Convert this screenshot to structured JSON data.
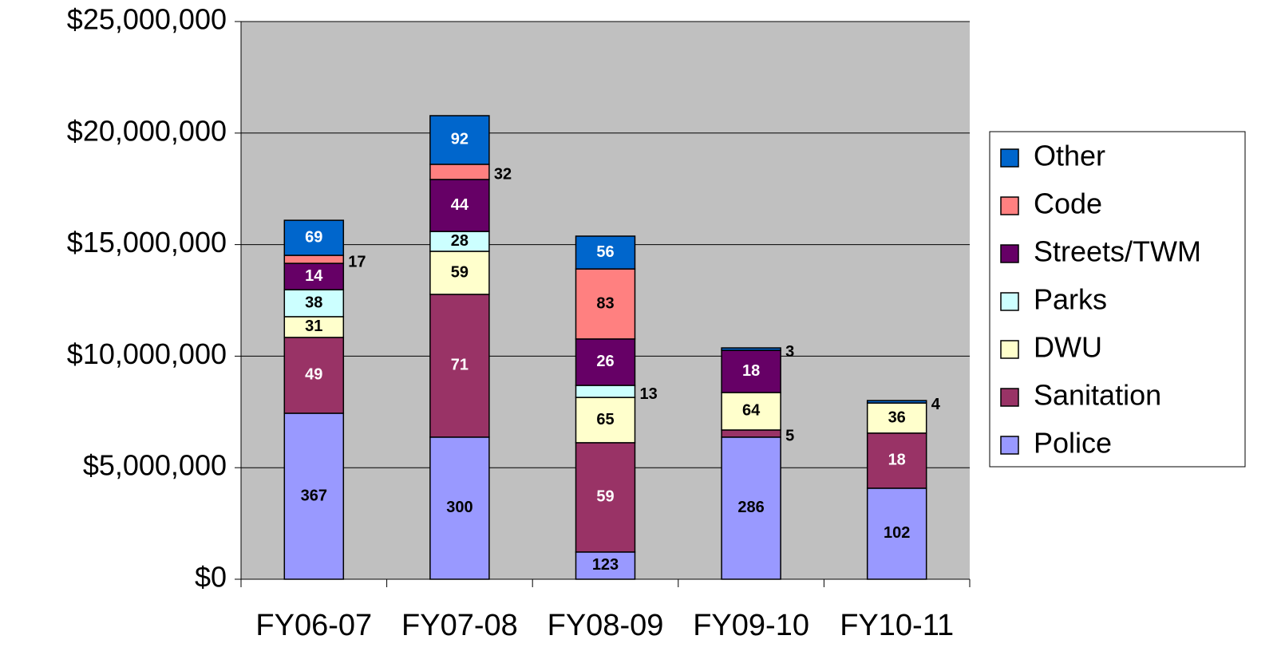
{
  "chart_data": {
    "type": "stacked_bar",
    "categories": [
      "FY06-07",
      "FY07-08",
      "FY08-09",
      "FY09-10",
      "FY10-11"
    ],
    "series": [
      {
        "name": "Police",
        "color": "#9999ff",
        "values": [
          7.44,
          6.37,
          1.22,
          6.37,
          4.08
        ],
        "counts": [
          367,
          300,
          123,
          286,
          102
        ]
      },
      {
        "name": "Sanitation",
        "color": "#993366",
        "values": [
          3.4,
          6.4,
          4.9,
          0.32,
          2.47
        ],
        "counts": [
          49,
          71,
          59,
          5,
          18
        ]
      },
      {
        "name": "DWU",
        "color": "#ffffcc",
        "values": [
          0.93,
          1.93,
          2.03,
          1.68,
          1.35
        ],
        "counts": [
          31,
          59,
          65,
          64,
          36
        ]
      },
      {
        "name": "Parks",
        "color": "#ccffff",
        "values": [
          1.21,
          0.89,
          0.54,
          0,
          0
        ],
        "counts": [
          38,
          28,
          13,
          null,
          null
        ]
      },
      {
        "name": "Streets/TWM",
        "color": "#660066",
        "values": [
          1.18,
          2.33,
          2.08,
          1.89,
          0
        ],
        "counts": [
          14,
          44,
          26,
          18,
          null
        ]
      },
      {
        "name": "Code",
        "color": "#ff8080",
        "values": [
          0.36,
          0.68,
          3.14,
          0,
          0
        ],
        "counts": [
          17,
          32,
          83,
          null,
          null
        ]
      },
      {
        "name": "Other",
        "color": "#0066cc",
        "values": [
          1.57,
          2.18,
          1.47,
          0.11,
          0.11
        ],
        "counts": [
          69,
          92,
          56,
          3,
          4
        ]
      }
    ],
    "ylim": [
      0,
      25000000
    ],
    "yticks": [
      {
        "value": 0,
        "label": "$0"
      },
      {
        "value": 5000000,
        "label": "$5,000,000"
      },
      {
        "value": 10000000,
        "label": "$10,000,000"
      },
      {
        "value": 15000000,
        "label": "$15,000,000"
      },
      {
        "value": 20000000,
        "label": "$20,000,000"
      },
      {
        "value": 25000000,
        "label": "$25,000,000"
      }
    ],
    "value_unit": 1000000,
    "grid": true,
    "legend": "right"
  }
}
